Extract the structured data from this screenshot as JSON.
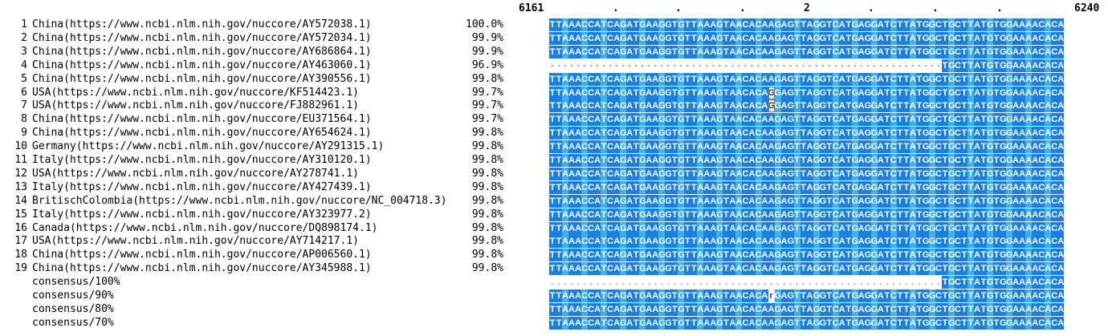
{
  "ruler": {
    "start": "6161",
    "end": "6240",
    "marks": [
      ".",
      ".",
      ".",
      "2",
      ".",
      ".",
      "."
    ]
  },
  "full_sequence": "TTAAACCATCAGATGAAGGTGTTAAAGTAACACAAGAGTTAGGTCATGAGGATCTTATGGCTGCTTATGTGGAAAACACA",
  "tail_sequence": "TGCTTATGTGGAAAACACA",
  "variant_sequence": "TTAAACCATCAGATGAAGGTGTTAAAGTAACACAGGAGTTAGGTCATGAGGATCTTATGGCTGCTTATGTGGAAAACACA",
  "consensus90_sequence": "TTAAACCATCAGATGAAGGTGTTAAAGTAACACArGAGTTAGGTCATGAGGATCTTATGGCTGCTTATGTGGAAAACACA",
  "rows": [
    {
      "num": "1",
      "name": "China(https://www.ncbi.nlm.nih.gov/nuccore/AY572038.1)",
      "pct": "100.0%"
    },
    {
      "num": "2",
      "name": "China(https://www.ncbi.nlm.nih.gov/nuccore/AY572034.1)",
      "pct": "99.9%"
    },
    {
      "num": "3",
      "name": "China(https://www.ncbi.nlm.nih.gov/nuccore/AY686864.1)",
      "pct": "99.9%"
    },
    {
      "num": "4",
      "name": "China(https://www.ncbi.nlm.nih.gov/nuccore/AY463060.1)",
      "pct": "96.9%"
    },
    {
      "num": "5",
      "name": "China(https://www.ncbi.nlm.nih.gov/nuccore/AY390556.1)",
      "pct": "99.8%"
    },
    {
      "num": "6",
      "name": "USA(https://www.ncbi.nlm.nih.gov/nuccore/KF514423.1)",
      "pct": "99.7%"
    },
    {
      "num": "7",
      "name": "USA(https://www.ncbi.nlm.nih.gov/nuccore/FJ882961.1)",
      "pct": "99.7%"
    },
    {
      "num": "8",
      "name": "China(https://www.ncbi.nlm.nih.gov/nuccore/EU371564.1)",
      "pct": "99.7%"
    },
    {
      "num": "9",
      "name": "China(https://www.ncbi.nlm.nih.gov/nuccore/AY654624.1)",
      "pct": "99.8%"
    },
    {
      "num": "10",
      "name": "Germany(https://www.ncbi.nlm.nih.gov/nuccore/AY291315.1)",
      "pct": "99.8%"
    },
    {
      "num": "11",
      "name": "Italy(https://www.ncbi.nlm.nih.gov/nuccore/AY310120.1)",
      "pct": "99.8%"
    },
    {
      "num": "12",
      "name": "USA(https://www.ncbi.nlm.nih.gov/nuccore/AY278741.1)",
      "pct": "99.8%"
    },
    {
      "num": "13",
      "name": "Italy(https://www.ncbi.nlm.nih.gov/nuccore/AY427439.1)",
      "pct": "99.8%"
    },
    {
      "num": "14",
      "name": "BritischColombia(https://www.ncbi.nlm.nih.gov/nuccore/NC_004718.3)",
      "pct": "99.8%"
    },
    {
      "num": "15",
      "name": "Italy(https://www.ncbi.nlm.nih.gov/nuccore/AY323977.2)",
      "pct": "99.8%"
    },
    {
      "num": "16",
      "name": "Canada(https://www.ncbi.nlm.nih.gov/nuccore/DQ898174.1)",
      "pct": "99.8%"
    },
    {
      "num": "17",
      "name": "USA(https://www.ncbi.nlm.nih.gov/nuccore/AY714217.1)",
      "pct": "99.8%"
    },
    {
      "num": "18",
      "name": "China(https://www.ncbi.nlm.nih.gov/nuccore/AP006560.1)",
      "pct": "99.8%"
    },
    {
      "num": "19",
      "name": "China(https://www.ncbi.nlm.nih.gov/nuccore/AY345988.1)",
      "pct": "99.8%"
    },
    {
      "num": "",
      "name": "consensus/100%",
      "pct": ""
    },
    {
      "num": "",
      "name": "consensus/90%",
      "pct": ""
    },
    {
      "num": "",
      "name": "consensus/80%",
      "pct": ""
    },
    {
      "num": "",
      "name": "consensus/70%",
      "pct": ""
    }
  ],
  "colors": {
    "identical_dark": "#1a7fe0",
    "identical_light": "#3fb0ec",
    "mismatch_bg": "#ececec",
    "consensus_variant": "#7a1fa8"
  }
}
